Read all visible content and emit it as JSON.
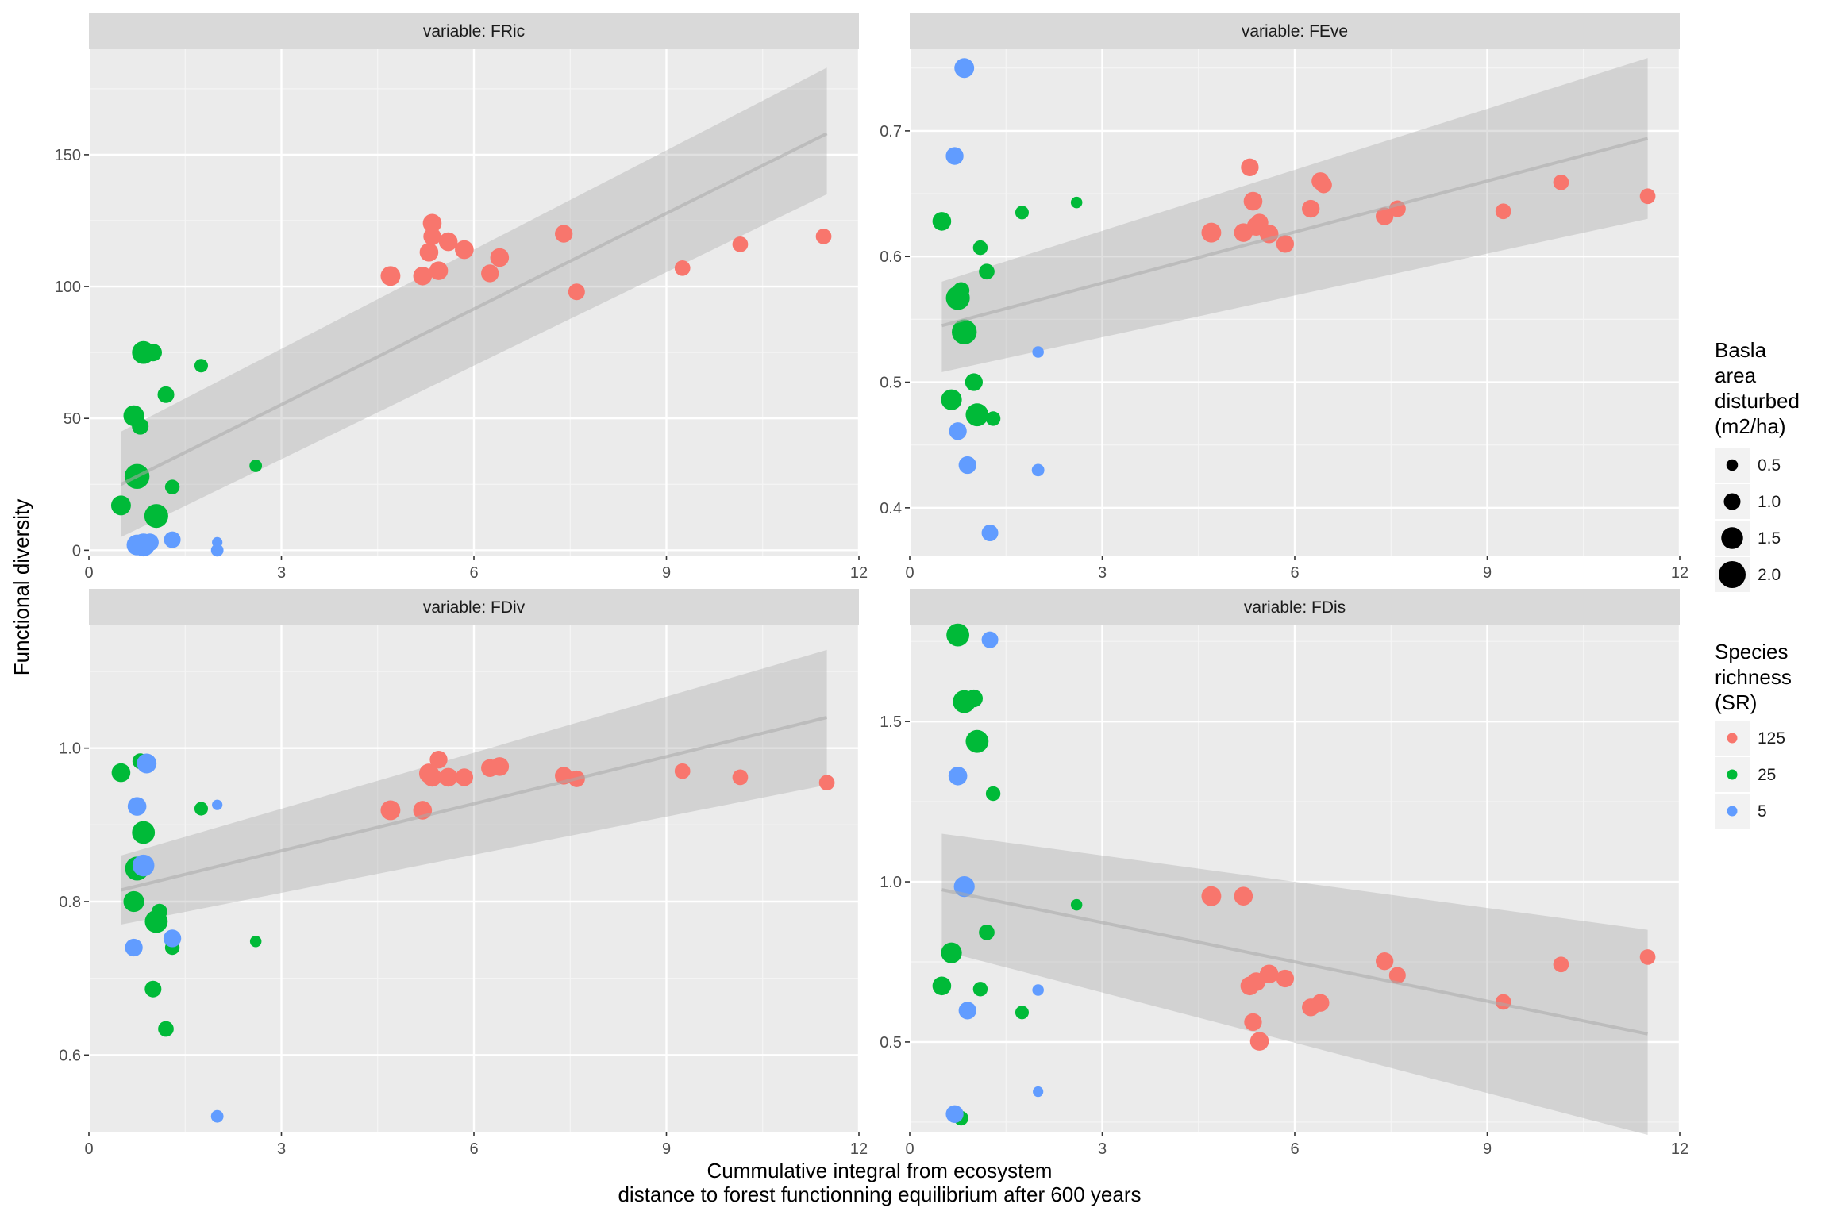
{
  "chart_data": {
    "type": "scatter",
    "ylabel": "Functional diversity",
    "xlabel_lines": [
      "Cummulative integral from ecosystem",
      "distance to forest functionning equilibrium after 600 years"
    ],
    "colors": {
      "125": "#F8766D",
      "25": "#00BA38",
      "5": "#619CFF"
    },
    "legend_size": {
      "title_lines": [
        "Basla",
        "area",
        "disturbed",
        "(m2/ha)"
      ],
      "entries": [
        {
          "label": "0.5",
          "value": 0.5
        },
        {
          "label": "1.0",
          "value": 1.0
        },
        {
          "label": "1.5",
          "value": 1.5
        },
        {
          "label": "2.0",
          "value": 2.0
        }
      ]
    },
    "legend_color": {
      "title_lines": [
        "Species",
        "richness",
        "(SR)"
      ],
      "entries": [
        {
          "label": "125",
          "color": "#F8766D"
        },
        {
          "label": "25",
          "color": "#00BA38"
        },
        {
          "label": "5",
          "color": "#619CFF"
        }
      ]
    },
    "panels": [
      {
        "title": "variable: FRic",
        "xlim": [
          0,
          12
        ],
        "ylim": [
          -2,
          190
        ],
        "xticks": [
          0,
          3,
          6,
          9,
          12
        ],
        "yticks": [
          0,
          50,
          100,
          150
        ],
        "ytick_labels": [
          "0",
          "50",
          "100",
          "150"
        ],
        "trend": {
          "x": [
            0.5,
            11.5
          ],
          "y": [
            25,
            158
          ]
        },
        "band": {
          "upper": [
            45,
            183
          ],
          "lower": [
            5,
            135
          ]
        },
        "points": [
          {
            "x": 4.7,
            "y": 104,
            "sr": "125",
            "s": 1.3
          },
          {
            "x": 5.2,
            "y": 104,
            "sr": "125",
            "s": 1.2
          },
          {
            "x": 5.3,
            "y": 113,
            "sr": "125",
            "s": 1.2
          },
          {
            "x": 5.35,
            "y": 124,
            "sr": "125",
            "s": 1.2
          },
          {
            "x": 5.35,
            "y": 119,
            "sr": "125",
            "s": 1.1
          },
          {
            "x": 5.45,
            "y": 106,
            "sr": "125",
            "s": 1.2
          },
          {
            "x": 5.6,
            "y": 117,
            "sr": "125",
            "s": 1.2
          },
          {
            "x": 5.85,
            "y": 114,
            "sr": "125",
            "s": 1.2
          },
          {
            "x": 6.25,
            "y": 105,
            "sr": "125",
            "s": 1.1
          },
          {
            "x": 6.4,
            "y": 111,
            "sr": "125",
            "s": 1.2
          },
          {
            "x": 7.4,
            "y": 120,
            "sr": "125",
            "s": 1.1
          },
          {
            "x": 7.6,
            "y": 98,
            "sr": "125",
            "s": 1.0
          },
          {
            "x": 9.25,
            "y": 107,
            "sr": "125",
            "s": 0.9
          },
          {
            "x": 10.15,
            "y": 116,
            "sr": "125",
            "s": 0.9
          },
          {
            "x": 11.45,
            "y": 119,
            "sr": "125",
            "s": 0.9
          },
          {
            "x": 0.85,
            "y": 75,
            "sr": "25",
            "s": 1.6
          },
          {
            "x": 1.0,
            "y": 75,
            "sr": "25",
            "s": 1.1
          },
          {
            "x": 0.7,
            "y": 51,
            "sr": "25",
            "s": 1.4
          },
          {
            "x": 0.8,
            "y": 47,
            "sr": "25",
            "s": 1.0
          },
          {
            "x": 1.2,
            "y": 59,
            "sr": "25",
            "s": 1.0
          },
          {
            "x": 1.75,
            "y": 70,
            "sr": "25",
            "s": 0.7
          },
          {
            "x": 0.75,
            "y": 28,
            "sr": "25",
            "s": 1.8
          },
          {
            "x": 1.3,
            "y": 24,
            "sr": "25",
            "s": 0.8
          },
          {
            "x": 0.5,
            "y": 17,
            "sr": "25",
            "s": 1.3
          },
          {
            "x": 1.05,
            "y": 13,
            "sr": "25",
            "s": 1.7
          },
          {
            "x": 2.6,
            "y": 32,
            "sr": "25",
            "s": 0.6
          },
          {
            "x": 0.75,
            "y": 2,
            "sr": "5",
            "s": 1.4
          },
          {
            "x": 0.85,
            "y": 2,
            "sr": "5",
            "s": 1.6
          },
          {
            "x": 0.95,
            "y": 3,
            "sr": "5",
            "s": 1.1
          },
          {
            "x": 1.3,
            "y": 4,
            "sr": "5",
            "s": 1.0
          },
          {
            "x": 2.0,
            "y": 3,
            "sr": "5",
            "s": 0.4
          },
          {
            "x": 2.0,
            "y": 0,
            "sr": "5",
            "s": 0.6
          }
        ]
      },
      {
        "title": "variable: FEve",
        "xlim": [
          0,
          12
        ],
        "ylim": [
          0.362,
          0.765
        ],
        "xticks": [
          0,
          3,
          6,
          9,
          12
        ],
        "yticks": [
          0.4,
          0.5,
          0.6,
          0.7
        ],
        "ytick_labels": [
          "0.4",
          "0.5",
          "0.6",
          "0.7"
        ],
        "trend": {
          "x": [
            0.5,
            11.5
          ],
          "y": [
            0.545,
            0.694
          ]
        },
        "band": {
          "upper": [
            0.58,
            0.758
          ],
          "lower": [
            0.508,
            0.63
          ]
        },
        "points": [
          {
            "x": 4.7,
            "y": 0.619,
            "sr": "125",
            "s": 1.3
          },
          {
            "x": 5.2,
            "y": 0.619,
            "sr": "125",
            "s": 1.2
          },
          {
            "x": 5.3,
            "y": 0.671,
            "sr": "125",
            "s": 1.1
          },
          {
            "x": 5.35,
            "y": 0.644,
            "sr": "125",
            "s": 1.2
          },
          {
            "x": 5.4,
            "y": 0.624,
            "sr": "125",
            "s": 1.2
          },
          {
            "x": 5.45,
            "y": 0.627,
            "sr": "125",
            "s": 1.1
          },
          {
            "x": 5.6,
            "y": 0.618,
            "sr": "125",
            "s": 1.2
          },
          {
            "x": 5.85,
            "y": 0.61,
            "sr": "125",
            "s": 1.1
          },
          {
            "x": 6.25,
            "y": 0.638,
            "sr": "125",
            "s": 1.1
          },
          {
            "x": 6.4,
            "y": 0.66,
            "sr": "125",
            "s": 1.1
          },
          {
            "x": 6.45,
            "y": 0.657,
            "sr": "125",
            "s": 1.0
          },
          {
            "x": 7.4,
            "y": 0.632,
            "sr": "125",
            "s": 1.1
          },
          {
            "x": 7.6,
            "y": 0.638,
            "sr": "125",
            "s": 1.0
          },
          {
            "x": 9.25,
            "y": 0.636,
            "sr": "125",
            "s": 0.9
          },
          {
            "x": 10.15,
            "y": 0.659,
            "sr": "125",
            "s": 0.9
          },
          {
            "x": 11.5,
            "y": 0.648,
            "sr": "125",
            "s": 0.9
          },
          {
            "x": 0.5,
            "y": 0.628,
            "sr": "25",
            "s": 1.2
          },
          {
            "x": 1.75,
            "y": 0.635,
            "sr": "25",
            "s": 0.7
          },
          {
            "x": 2.6,
            "y": 0.643,
            "sr": "25",
            "s": 0.5
          },
          {
            "x": 1.1,
            "y": 0.607,
            "sr": "25",
            "s": 0.8
          },
          {
            "x": 1.2,
            "y": 0.588,
            "sr": "25",
            "s": 0.9
          },
          {
            "x": 0.8,
            "y": 0.573,
            "sr": "25",
            "s": 1.0
          },
          {
            "x": 0.75,
            "y": 0.567,
            "sr": "25",
            "s": 1.7
          },
          {
            "x": 0.85,
            "y": 0.54,
            "sr": "25",
            "s": 1.8
          },
          {
            "x": 1.0,
            "y": 0.5,
            "sr": "25",
            "s": 1.1
          },
          {
            "x": 0.65,
            "y": 0.486,
            "sr": "25",
            "s": 1.4
          },
          {
            "x": 1.05,
            "y": 0.474,
            "sr": "25",
            "s": 1.6
          },
          {
            "x": 1.3,
            "y": 0.471,
            "sr": "25",
            "s": 0.8
          },
          {
            "x": 0.85,
            "y": 0.75,
            "sr": "5",
            "s": 1.3
          },
          {
            "x": 0.7,
            "y": 0.68,
            "sr": "5",
            "s": 1.1
          },
          {
            "x": 2.0,
            "y": 0.524,
            "sr": "5",
            "s": 0.5
          },
          {
            "x": 0.75,
            "y": 0.461,
            "sr": "5",
            "s": 1.1
          },
          {
            "x": 0.9,
            "y": 0.434,
            "sr": "5",
            "s": 1.1
          },
          {
            "x": 2.0,
            "y": 0.43,
            "sr": "5",
            "s": 0.6
          },
          {
            "x": 1.25,
            "y": 0.38,
            "sr": "5",
            "s": 1.0
          }
        ]
      },
      {
        "title": "variable: FDiv",
        "xlim": [
          0,
          12
        ],
        "ylim": [
          0.5,
          1.16
        ],
        "xticks": [
          0,
          3,
          6,
          9,
          12
        ],
        "yticks": [
          0.6,
          0.8,
          1.0
        ],
        "ytick_labels": [
          "0.6",
          "0.8",
          "1.0"
        ],
        "trend": {
          "x": [
            0.5,
            11.5
          ],
          "y": [
            0.815,
            1.04
          ]
        },
        "band": {
          "upper": [
            0.86,
            1.128
          ],
          "lower": [
            0.77,
            0.952
          ]
        },
        "points": [
          {
            "x": 4.7,
            "y": 0.919,
            "sr": "125",
            "s": 1.3
          },
          {
            "x": 5.2,
            "y": 0.919,
            "sr": "125",
            "s": 1.2
          },
          {
            "x": 5.3,
            "y": 0.967,
            "sr": "125",
            "s": 1.3
          },
          {
            "x": 5.35,
            "y": 0.962,
            "sr": "125",
            "s": 1.2
          },
          {
            "x": 5.45,
            "y": 0.985,
            "sr": "125",
            "s": 1.1
          },
          {
            "x": 5.6,
            "y": 0.962,
            "sr": "125",
            "s": 1.2
          },
          {
            "x": 5.85,
            "y": 0.962,
            "sr": "125",
            "s": 1.1
          },
          {
            "x": 6.25,
            "y": 0.974,
            "sr": "125",
            "s": 1.1
          },
          {
            "x": 6.4,
            "y": 0.976,
            "sr": "125",
            "s": 1.2
          },
          {
            "x": 7.4,
            "y": 0.964,
            "sr": "125",
            "s": 1.1
          },
          {
            "x": 7.6,
            "y": 0.96,
            "sr": "125",
            "s": 1.0
          },
          {
            "x": 9.25,
            "y": 0.97,
            "sr": "125",
            "s": 0.9
          },
          {
            "x": 10.15,
            "y": 0.962,
            "sr": "125",
            "s": 0.9
          },
          {
            "x": 11.5,
            "y": 0.955,
            "sr": "125",
            "s": 0.9
          },
          {
            "x": 0.5,
            "y": 0.968,
            "sr": "25",
            "s": 1.2
          },
          {
            "x": 0.8,
            "y": 0.983,
            "sr": "25",
            "s": 0.9
          },
          {
            "x": 1.75,
            "y": 0.921,
            "sr": "25",
            "s": 0.7
          },
          {
            "x": 0.85,
            "y": 0.89,
            "sr": "25",
            "s": 1.6
          },
          {
            "x": 0.75,
            "y": 0.843,
            "sr": "25",
            "s": 1.7
          },
          {
            "x": 0.7,
            "y": 0.8,
            "sr": "25",
            "s": 1.4
          },
          {
            "x": 1.1,
            "y": 0.787,
            "sr": "25",
            "s": 0.9
          },
          {
            "x": 1.05,
            "y": 0.774,
            "sr": "25",
            "s": 1.6
          },
          {
            "x": 2.6,
            "y": 0.748,
            "sr": "25",
            "s": 0.5
          },
          {
            "x": 1.3,
            "y": 0.74,
            "sr": "25",
            "s": 0.8
          },
          {
            "x": 1.0,
            "y": 0.686,
            "sr": "25",
            "s": 1.0
          },
          {
            "x": 1.2,
            "y": 0.634,
            "sr": "25",
            "s": 0.9
          },
          {
            "x": 0.9,
            "y": 0.98,
            "sr": "5",
            "s": 1.3
          },
          {
            "x": 0.75,
            "y": 0.924,
            "sr": "5",
            "s": 1.2
          },
          {
            "x": 2.0,
            "y": 0.926,
            "sr": "5",
            "s": 0.4
          },
          {
            "x": 0.85,
            "y": 0.847,
            "sr": "5",
            "s": 1.5
          },
          {
            "x": 1.3,
            "y": 0.752,
            "sr": "5",
            "s": 1.1
          },
          {
            "x": 0.7,
            "y": 0.74,
            "sr": "5",
            "s": 1.1
          },
          {
            "x": 2.0,
            "y": 0.52,
            "sr": "5",
            "s": 0.6
          }
        ]
      },
      {
        "title": "variable: FDis",
        "xlim": [
          0,
          12
        ],
        "ylim": [
          0.22,
          1.8
        ],
        "xticks": [
          0,
          3,
          6,
          9,
          12
        ],
        "yticks": [
          0.5,
          1.0,
          1.5
        ],
        "ytick_labels": [
          "0.5",
          "1.0",
          "1.5"
        ],
        "trend": {
          "x": [
            0.5,
            11.5
          ],
          "y": [
            0.975,
            0.525
          ]
        },
        "band": {
          "upper": [
            1.15,
            0.85
          ],
          "lower": [
            0.785,
            0.21
          ]
        },
        "points": [
          {
            "x": 4.7,
            "y": 0.955,
            "sr": "125",
            "s": 1.3
          },
          {
            "x": 5.2,
            "y": 0.955,
            "sr": "125",
            "s": 1.2
          },
          {
            "x": 5.3,
            "y": 0.675,
            "sr": "125",
            "s": 1.2
          },
          {
            "x": 5.4,
            "y": 0.688,
            "sr": "125",
            "s": 1.2
          },
          {
            "x": 5.6,
            "y": 0.712,
            "sr": "125",
            "s": 1.2
          },
          {
            "x": 5.85,
            "y": 0.698,
            "sr": "125",
            "s": 1.1
          },
          {
            "x": 5.35,
            "y": 0.562,
            "sr": "125",
            "s": 1.1
          },
          {
            "x": 5.45,
            "y": 0.502,
            "sr": "125",
            "s": 1.2
          },
          {
            "x": 6.25,
            "y": 0.608,
            "sr": "125",
            "s": 1.1
          },
          {
            "x": 6.4,
            "y": 0.622,
            "sr": "125",
            "s": 1.1
          },
          {
            "x": 7.4,
            "y": 0.752,
            "sr": "125",
            "s": 1.1
          },
          {
            "x": 7.6,
            "y": 0.708,
            "sr": "125",
            "s": 1.0
          },
          {
            "x": 9.25,
            "y": 0.625,
            "sr": "125",
            "s": 0.9
          },
          {
            "x": 10.15,
            "y": 0.742,
            "sr": "125",
            "s": 0.9
          },
          {
            "x": 11.5,
            "y": 0.765,
            "sr": "125",
            "s": 0.9
          },
          {
            "x": 0.75,
            "y": 1.77,
            "sr": "25",
            "s": 1.6
          },
          {
            "x": 1.0,
            "y": 1.572,
            "sr": "25",
            "s": 1.1
          },
          {
            "x": 0.85,
            "y": 1.562,
            "sr": "25",
            "s": 1.6
          },
          {
            "x": 1.05,
            "y": 1.438,
            "sr": "25",
            "s": 1.6
          },
          {
            "x": 1.3,
            "y": 1.275,
            "sr": "25",
            "s": 0.8
          },
          {
            "x": 2.6,
            "y": 0.928,
            "sr": "25",
            "s": 0.5
          },
          {
            "x": 1.2,
            "y": 0.842,
            "sr": "25",
            "s": 0.9
          },
          {
            "x": 0.65,
            "y": 0.778,
            "sr": "25",
            "s": 1.4
          },
          {
            "x": 0.5,
            "y": 0.675,
            "sr": "25",
            "s": 1.2
          },
          {
            "x": 1.1,
            "y": 0.665,
            "sr": "25",
            "s": 0.8
          },
          {
            "x": 1.75,
            "y": 0.592,
            "sr": "25",
            "s": 0.7
          },
          {
            "x": 0.8,
            "y": 0.262,
            "sr": "25",
            "s": 0.8
          },
          {
            "x": 1.25,
            "y": 1.755,
            "sr": "5",
            "s": 1.0
          },
          {
            "x": 0.75,
            "y": 1.33,
            "sr": "5",
            "s": 1.2
          },
          {
            "x": 0.85,
            "y": 0.985,
            "sr": "5",
            "s": 1.4
          },
          {
            "x": 2.0,
            "y": 0.662,
            "sr": "5",
            "s": 0.5
          },
          {
            "x": 0.9,
            "y": 0.598,
            "sr": "5",
            "s": 1.1
          },
          {
            "x": 2.0,
            "y": 0.345,
            "sr": "5",
            "s": 0.4
          },
          {
            "x": 0.7,
            "y": 0.275,
            "sr": "5",
            "s": 1.1
          }
        ]
      }
    ]
  }
}
